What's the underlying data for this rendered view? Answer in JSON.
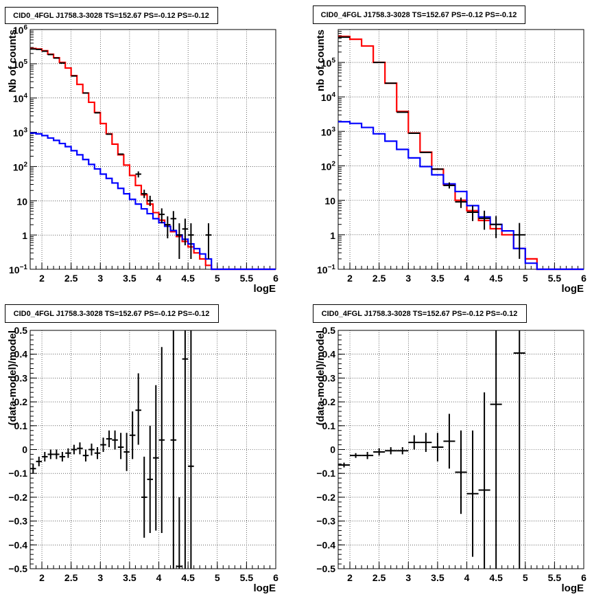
{
  "chart_data": [
    {
      "type": "step-histogram",
      "title": "CID0_4FGL J1758.3-3028 TS=152.67 PS=-0.12 PS=-0.12",
      "xlabel": "logE",
      "ylabel": "Nb of counts",
      "xlim": [
        1.8,
        6.0
      ],
      "ylim": [
        0.1,
        1000000
      ],
      "yscale": "log",
      "grid": true,
      "x_ticks": [
        "2",
        "2.5",
        "3",
        "3.5",
        "4",
        "4.5",
        "5",
        "5.5",
        "6"
      ],
      "y_ticks": [
        {
          "v": 0.1,
          "base": "10",
          "exp": "−1"
        },
        {
          "v": 1,
          "base": "1",
          "exp": ""
        },
        {
          "v": 10,
          "base": "10",
          "exp": ""
        },
        {
          "v": 100,
          "base": "10",
          "exp": "2"
        },
        {
          "v": 1000,
          "base": "10",
          "exp": "3"
        },
        {
          "v": 10000,
          "base": "10",
          "exp": "4"
        },
        {
          "v": 100000,
          "base": "10",
          "exp": "5"
        },
        {
          "v": 1000000,
          "base": "10",
          "exp": "6"
        }
      ],
      "x_edges": [
        1.8,
        1.9,
        2.0,
        2.1,
        2.2,
        2.3,
        2.4,
        2.5,
        2.6,
        2.7,
        2.8,
        2.9,
        3.0,
        3.1,
        3.2,
        3.3,
        3.4,
        3.5,
        3.6,
        3.7,
        3.8,
        3.9,
        4.0,
        4.1,
        4.2,
        4.3,
        4.4,
        4.5,
        4.6,
        4.7,
        4.8,
        4.9,
        5.0,
        5.1,
        5.2,
        5.3,
        5.4,
        5.5,
        5.6,
        5.7,
        5.8,
        5.9,
        6.0
      ],
      "series": [
        {
          "color": "#ff0000",
          "values": [
            280000,
            270000,
            240000,
            190000,
            150000,
            110000,
            75000,
            45000,
            25000,
            14000,
            7500,
            3800,
            1800,
            900,
            450,
            220,
            110,
            55,
            28,
            15,
            8,
            4.5,
            2.7,
            1.8,
            1.25,
            0.9,
            0.65,
            0.45,
            0.3,
            0.2,
            0.13,
            0.1,
            0.1,
            0.1,
            0.1,
            0.1,
            0.1,
            0.1,
            0.1,
            0.1,
            0.1,
            0.1
          ]
        },
        {
          "color": "#0000ff",
          "values": [
            950,
            900,
            800,
            680,
            580,
            470,
            380,
            290,
            220,
            160,
            115,
            85,
            60,
            45,
            33,
            23,
            16,
            11,
            8,
            5.8,
            4.2,
            3,
            2.3,
            1.8,
            1.35,
            1,
            0.75,
            0.55,
            0.4,
            0.28,
            0.2,
            0.1,
            0.1,
            0.1,
            0.1,
            0.1,
            0.1,
            0.1,
            0.1,
            0.1,
            0.1,
            0.1
          ]
        }
      ],
      "data_points": [
        {
          "x": 1.85,
          "y": 270000,
          "dx": 0.05
        },
        {
          "x": 1.95,
          "y": 262000,
          "dx": 0.05
        },
        {
          "x": 2.05,
          "y": 233000,
          "dx": 0.05
        },
        {
          "x": 2.15,
          "y": 186000,
          "dx": 0.05
        },
        {
          "x": 2.25,
          "y": 147000,
          "dx": 0.05
        },
        {
          "x": 2.35,
          "y": 105000,
          "dx": 0.05
        },
        {
          "x": 2.55,
          "y": 44000,
          "dx": 0.05
        },
        {
          "x": 2.75,
          "y": 14000,
          "dx": 0.05
        },
        {
          "x": 2.95,
          "y": 3700,
          "dx": 0.05
        },
        {
          "x": 3.15,
          "y": 880,
          "dx": 0.05
        },
        {
          "x": 3.35,
          "y": 230,
          "dx": 0.05
        },
        {
          "x": 3.65,
          "y": 60,
          "dx": 0.05,
          "ylo": 48,
          "yhi": 72
        },
        {
          "x": 3.75,
          "y": 16,
          "dx": 0.05,
          "ylo": 12,
          "yhi": 21
        },
        {
          "x": 3.85,
          "y": 10,
          "dx": 0.05,
          "ylo": 7,
          "yhi": 14
        },
        {
          "x": 4.05,
          "y": 4,
          "dx": 0.05,
          "ylo": 2.2,
          "yhi": 6
        },
        {
          "x": 4.15,
          "y": 2,
          "dx": 0.05,
          "ylo": 0.8,
          "yhi": 3.5
        },
        {
          "x": 4.25,
          "y": 3,
          "dx": 0.05,
          "ylo": 1.4,
          "yhi": 5
        },
        {
          "x": 4.35,
          "y": 1,
          "dx": 0.05,
          "ylo": 0.2,
          "yhi": 2.2
        },
        {
          "x": 4.45,
          "y": 1.5,
          "dx": 0.05,
          "ylo": 0.5,
          "yhi": 3
        },
        {
          "x": 4.55,
          "y": 1,
          "dx": 0.05,
          "ylo": 0.2,
          "yhi": 2.2
        },
        {
          "x": 4.85,
          "y": 1,
          "dx": 0.05,
          "ylo": 0.2,
          "yhi": 2.2
        }
      ]
    },
    {
      "type": "step-histogram",
      "title": "CID0_4FGL J1758.3-3028 TS=152.67 PS=-0.12 PS=-0.12",
      "xlabel": "logE",
      "ylabel": "nb of counts",
      "xlim": [
        1.8,
        6.0
      ],
      "ylim": [
        0.1,
        900000
      ],
      "yscale": "log",
      "grid": true,
      "x_ticks": [
        "2",
        "2.5",
        "3",
        "3.5",
        "4",
        "4.5",
        "5",
        "5.5",
        "6"
      ],
      "y_ticks": [
        {
          "v": 0.1,
          "base": "10",
          "exp": "−1"
        },
        {
          "v": 1,
          "base": "1",
          "exp": ""
        },
        {
          "v": 10,
          "base": "10",
          "exp": ""
        },
        {
          "v": 100,
          "base": "10",
          "exp": "2"
        },
        {
          "v": 1000,
          "base": "10",
          "exp": "3"
        },
        {
          "v": 10000,
          "base": "10",
          "exp": "4"
        },
        {
          "v": 100000,
          "base": "10",
          "exp": "5"
        }
      ],
      "x_edges": [
        1.8,
        2.0,
        2.2,
        2.4,
        2.6,
        2.8,
        3.0,
        3.2,
        3.4,
        3.6,
        3.8,
        4.0,
        4.2,
        4.4,
        4.6,
        4.8,
        5.0,
        5.2,
        5.4,
        5.6,
        5.8,
        6.0
      ],
      "series": [
        {
          "color": "#ff0000",
          "values": [
            570000,
            470000,
            300000,
            100000,
            25000,
            3800,
            900,
            250,
            80,
            28,
            10,
            5,
            2.6,
            1.5,
            1,
            0.4,
            0.2,
            0.1,
            0.1,
            0.1,
            0.1
          ]
        },
        {
          "color": "#0000ff",
          "values": [
            1900,
            1700,
            1300,
            850,
            520,
            300,
            170,
            95,
            55,
            30,
            18,
            7,
            3.3,
            2,
            1.3,
            0.4,
            0.15,
            0.1,
            0.1,
            0.1,
            0.1
          ]
        }
      ],
      "data_points": [
        {
          "x": 1.9,
          "y": 540000,
          "dx": 0.1
        },
        {
          "x": 2.5,
          "y": 100000,
          "dx": 0.1
        },
        {
          "x": 2.7,
          "y": 25000,
          "dx": 0.1
        },
        {
          "x": 2.9,
          "y": 3600,
          "dx": 0.1
        },
        {
          "x": 3.1,
          "y": 880,
          "dx": 0.1
        },
        {
          "x": 3.3,
          "y": 245,
          "dx": 0.1
        },
        {
          "x": 3.5,
          "y": 80,
          "dx": 0.1
        },
        {
          "x": 3.7,
          "y": 27,
          "dx": 0.1,
          "ylo": 22,
          "yhi": 33
        },
        {
          "x": 3.9,
          "y": 9,
          "dx": 0.1,
          "ylo": 6,
          "yhi": 12
        },
        {
          "x": 4.1,
          "y": 4.5,
          "dx": 0.1,
          "ylo": 2.5,
          "yhi": 7
        },
        {
          "x": 4.3,
          "y": 3,
          "dx": 0.1,
          "ylo": 1.4,
          "yhi": 5
        },
        {
          "x": 4.5,
          "y": 2,
          "dx": 0.1,
          "ylo": 0.8,
          "yhi": 3.5
        },
        {
          "x": 4.9,
          "y": 1,
          "dx": 0.1,
          "ylo": 0.2,
          "yhi": 2.2
        }
      ]
    },
    {
      "type": "scatter",
      "title": "CID0_4FGL J1758.3-3028 TS=152.67 PS=-0.12 PS=-0.12",
      "xlabel": "logE",
      "ylabel": "(data-model)/model",
      "xlim": [
        1.8,
        6.0
      ],
      "ylim": [
        -0.5,
        0.5
      ],
      "grid": true,
      "x_ticks": [
        "2",
        "2.5",
        "3",
        "3.5",
        "4",
        "4.5",
        "5",
        "5.5",
        "6"
      ],
      "y_ticks": [
        "−0.5",
        "−0.4",
        "−0.3",
        "−0.2",
        "−0.1",
        "0",
        "0.1",
        "0.2",
        "0.3",
        "0.4",
        "0.5"
      ],
      "points": [
        {
          "x": 1.85,
          "y": -0.08,
          "dx": 0.05,
          "lo": -0.1,
          "hi": -0.06
        },
        {
          "x": 1.95,
          "y": -0.05,
          "dx": 0.05,
          "lo": -0.07,
          "hi": -0.03
        },
        {
          "x": 2.05,
          "y": -0.03,
          "dx": 0.05,
          "lo": -0.05,
          "hi": -0.01
        },
        {
          "x": 2.15,
          "y": -0.02,
          "dx": 0.05,
          "lo": -0.04,
          "hi": 0.0
        },
        {
          "x": 2.25,
          "y": -0.02,
          "dx": 0.05,
          "lo": -0.04,
          "hi": 0.0
        },
        {
          "x": 2.35,
          "y": -0.03,
          "dx": 0.05,
          "lo": -0.05,
          "hi": -0.01
        },
        {
          "x": 2.45,
          "y": -0.015,
          "dx": 0.05,
          "lo": -0.035,
          "hi": 0.005
        },
        {
          "x": 2.55,
          "y": 0.0,
          "dx": 0.05,
          "lo": -0.02,
          "hi": 0.02
        },
        {
          "x": 2.65,
          "y": 0.005,
          "dx": 0.05,
          "lo": -0.02,
          "hi": 0.03
        },
        {
          "x": 2.75,
          "y": -0.025,
          "dx": 0.05,
          "lo": -0.05,
          "hi": 0.0
        },
        {
          "x": 2.85,
          "y": 0.0,
          "dx": 0.05,
          "lo": -0.025,
          "hi": 0.025
        },
        {
          "x": 2.95,
          "y": -0.015,
          "dx": 0.05,
          "lo": -0.04,
          "hi": 0.01
        },
        {
          "x": 3.05,
          "y": 0.02,
          "dx": 0.05,
          "lo": -0.01,
          "hi": 0.05
        },
        {
          "x": 3.15,
          "y": 0.045,
          "dx": 0.05,
          "lo": 0.01,
          "hi": 0.08
        },
        {
          "x": 3.25,
          "y": 0.04,
          "dx": 0.05,
          "lo": 0.0,
          "hi": 0.08
        },
        {
          "x": 3.35,
          "y": 0.01,
          "dx": 0.05,
          "lo": -0.04,
          "hi": 0.07
        },
        {
          "x": 3.45,
          "y": -0.01,
          "dx": 0.05,
          "lo": -0.09,
          "hi": 0.07
        },
        {
          "x": 3.55,
          "y": 0.06,
          "dx": 0.05,
          "lo": -0.04,
          "hi": 0.16
        },
        {
          "x": 3.65,
          "y": 0.165,
          "dx": 0.05,
          "lo": 0.02,
          "hi": 0.32
        },
        {
          "x": 3.75,
          "y": -0.2,
          "dx": 0.05,
          "lo": -0.37,
          "hi": -0.03
        },
        {
          "x": 3.85,
          "y": -0.125,
          "dx": 0.05,
          "lo": -0.35,
          "hi": 0.1
        },
        {
          "x": 3.95,
          "y": -0.035,
          "dx": 0.05,
          "lo": -0.34,
          "hi": 0.27
        },
        {
          "x": 4.05,
          "y": 0.04,
          "dx": 0.05,
          "lo": -0.35,
          "hi": 0.43
        },
        {
          "x": 4.25,
          "y": 0.04,
          "dx": 0.05,
          "lo": -0.5,
          "hi": 0.5
        },
        {
          "x": 4.35,
          "y": -0.49,
          "dx": 0.05,
          "lo": -0.5,
          "hi": -0.2
        },
        {
          "x": 4.45,
          "y": 0.38,
          "dx": 0.05,
          "lo": -0.5,
          "hi": 0.5
        },
        {
          "x": 4.55,
          "y": -0.07,
          "dx": 0.05,
          "lo": -0.5,
          "hi": 0.5
        }
      ]
    },
    {
      "type": "scatter",
      "title": "CID0_4FGL J1758.3-3028 TS=152.67 PS=-0.12 PS=-0.12",
      "xlabel": "logE",
      "ylabel": "(data-model)/model",
      "xlim": [
        1.8,
        6.0
      ],
      "ylim": [
        -0.5,
        0.5
      ],
      "grid": true,
      "x_ticks": [
        "2",
        "2.5",
        "3",
        "3.5",
        "4",
        "4.5",
        "5",
        "5.5",
        "6"
      ],
      "y_ticks": [
        "−0.5",
        "−0.4",
        "−0.3",
        "−0.2",
        "−0.1",
        "0",
        "0.1",
        "0.2",
        "0.3",
        "0.4",
        "0.5"
      ],
      "points": [
        {
          "x": 1.9,
          "y": -0.065,
          "dx": 0.1,
          "lo": -0.075,
          "hi": -0.055
        },
        {
          "x": 2.1,
          "y": -0.025,
          "dx": 0.1,
          "lo": -0.035,
          "hi": -0.015
        },
        {
          "x": 2.3,
          "y": -0.025,
          "dx": 0.1,
          "lo": -0.04,
          "hi": -0.01
        },
        {
          "x": 2.5,
          "y": -0.01,
          "dx": 0.1,
          "lo": -0.025,
          "hi": 0.005
        },
        {
          "x": 2.7,
          "y": -0.005,
          "dx": 0.1,
          "lo": -0.02,
          "hi": 0.01
        },
        {
          "x": 2.9,
          "y": -0.005,
          "dx": 0.1,
          "lo": -0.02,
          "hi": 0.01
        },
        {
          "x": 3.1,
          "y": 0.03,
          "dx": 0.1,
          "lo": 0.0,
          "hi": 0.06
        },
        {
          "x": 3.3,
          "y": 0.03,
          "dx": 0.1,
          "lo": -0.01,
          "hi": 0.07
        },
        {
          "x": 3.5,
          "y": 0.01,
          "dx": 0.1,
          "lo": -0.05,
          "hi": 0.07
        },
        {
          "x": 3.7,
          "y": 0.035,
          "dx": 0.1,
          "lo": -0.08,
          "hi": 0.15
        },
        {
          "x": 3.9,
          "y": -0.095,
          "dx": 0.1,
          "lo": -0.27,
          "hi": 0.08
        },
        {
          "x": 4.1,
          "y": -0.185,
          "dx": 0.1,
          "lo": -0.45,
          "hi": 0.08
        },
        {
          "x": 4.3,
          "y": -0.17,
          "dx": 0.1,
          "lo": -0.5,
          "hi": 0.24
        },
        {
          "x": 4.5,
          "y": 0.19,
          "dx": 0.1,
          "lo": -0.5,
          "hi": 0.5
        },
        {
          "x": 4.9,
          "y": 0.405,
          "dx": 0.1,
          "lo": -0.5,
          "hi": 0.5
        }
      ]
    }
  ]
}
